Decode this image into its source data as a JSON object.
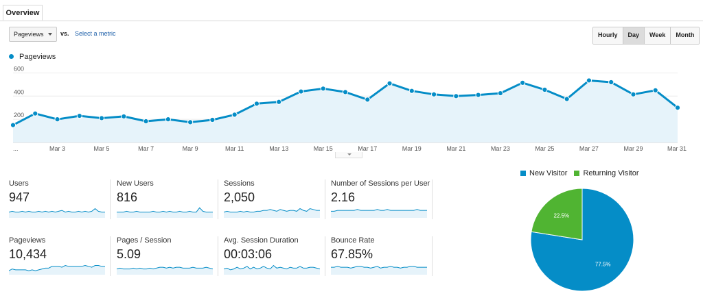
{
  "tabs": [
    {
      "label": "Overview"
    }
  ],
  "controls": {
    "metric_select": "Pageviews",
    "vs_label": "vs.",
    "select_metric_link": "Select a metric",
    "period_buttons": [
      "Hourly",
      "Day",
      "Week",
      "Month"
    ],
    "active_period": "Day"
  },
  "colors": {
    "primary": "#058dc7",
    "secondary": "#50b432",
    "area_fill": "#e6f3fa",
    "grid": "#ececec"
  },
  "chart_data": [
    {
      "type": "line",
      "series": [
        {
          "name": "Pageviews",
          "values": [
            150,
            250,
            200,
            230,
            210,
            225,
            183,
            200,
            175,
            195,
            240,
            335,
            350,
            440,
            465,
            435,
            370,
            510,
            445,
            415,
            400,
            410,
            425,
            515,
            455,
            375,
            535,
            520,
            415,
            450,
            300
          ]
        }
      ],
      "x": [
        "Mar 1",
        "Mar 2",
        "Mar 3",
        "Mar 4",
        "Mar 5",
        "Mar 6",
        "Mar 7",
        "Mar 8",
        "Mar 9",
        "Mar 10",
        "Mar 11",
        "Mar 12",
        "Mar 13",
        "Mar 14",
        "Mar 15",
        "Mar 16",
        "Mar 17",
        "Mar 18",
        "Mar 19",
        "Mar 20",
        "Mar 21",
        "Mar 22",
        "Mar 23",
        "Mar 24",
        "Mar 25",
        "Mar 26",
        "Mar 27",
        "Mar 28",
        "Mar 29",
        "Mar 30",
        "Mar 31"
      ],
      "xtick_labels": [
        "...",
        "Mar 3",
        "Mar 5",
        "Mar 7",
        "Mar 9",
        "Mar 11",
        "Mar 13",
        "Mar 15",
        "Mar 17",
        "Mar 19",
        "Mar 21",
        "Mar 23",
        "Mar 25",
        "Mar 27",
        "Mar 29",
        "Mar 31"
      ],
      "y_ticks": [
        200,
        400,
        600
      ],
      "ylim": [
        0,
        650
      ],
      "grid": true,
      "legend": "top-left"
    },
    {
      "type": "pie",
      "labels": [
        "New Visitor",
        "Returning Visitor"
      ],
      "values": [
        77.5,
        22.5
      ],
      "value_labels": [
        "77.5%",
        "22.5%"
      ],
      "colors": [
        "#058dc7",
        "#50b432"
      ],
      "legend": "top"
    }
  ],
  "metrics": [
    {
      "label": "Users",
      "value": "947",
      "spark": [
        5,
        6,
        5,
        5,
        6,
        5,
        6,
        5,
        5,
        6,
        5,
        6,
        5,
        6,
        5,
        6,
        7,
        5,
        6,
        5,
        5,
        6,
        5,
        6,
        5,
        6,
        9,
        6,
        5,
        5
      ]
    },
    {
      "label": "New Users",
      "value": "816",
      "spark": [
        5,
        5,
        5,
        6,
        5,
        5,
        6,
        5,
        5,
        5,
        5,
        6,
        5,
        5,
        6,
        5,
        6,
        5,
        5,
        6,
        5,
        5,
        6,
        5,
        5,
        10,
        6,
        5,
        5,
        5
      ]
    },
    {
      "label": "Sessions",
      "value": "2,050",
      "spark": [
        5,
        6,
        5,
        5,
        5,
        6,
        5,
        6,
        5,
        5,
        6,
        6,
        7,
        7,
        8,
        7,
        6,
        8,
        7,
        6,
        7,
        7,
        6,
        9,
        7,
        6,
        9,
        8,
        7,
        7
      ]
    },
    {
      "label": "Number of Sessions per User",
      "value": "2.16",
      "spark": [
        6,
        6,
        7,
        7,
        7,
        7,
        7,
        7,
        8,
        7,
        7,
        7,
        7,
        7,
        8,
        7,
        7,
        8,
        7,
        7,
        7,
        7,
        7,
        7,
        7,
        7,
        8,
        7,
        7,
        7
      ]
    },
    {
      "label": "Pageviews",
      "value": "10,434",
      "spark": [
        3,
        5,
        4,
        4,
        4,
        4,
        3,
        4,
        3,
        4,
        5,
        6,
        6,
        8,
        8,
        8,
        7,
        9,
        8,
        8,
        8,
        8,
        8,
        9,
        8,
        7,
        9,
        9,
        8,
        8
      ]
    },
    {
      "label": "Pages / Session",
      "value": "5.09",
      "spark": [
        5,
        6,
        5,
        5,
        5,
        6,
        5,
        6,
        5,
        5,
        6,
        5,
        6,
        7,
        7,
        6,
        7,
        6,
        7,
        7,
        6,
        6,
        6,
        7,
        6,
        6,
        6,
        7,
        6,
        5
      ]
    },
    {
      "label": "Avg. Session Duration",
      "value": "00:03:06",
      "spark": [
        5,
        6,
        4,
        5,
        7,
        5,
        6,
        8,
        5,
        7,
        5,
        6,
        8,
        6,
        5,
        9,
        6,
        7,
        6,
        5,
        7,
        6,
        6,
        8,
        6,
        6,
        7,
        7,
        6,
        5
      ]
    },
    {
      "label": "Bounce Rate",
      "value": "67.85%",
      "spark": [
        7,
        7,
        8,
        7,
        7,
        7,
        6,
        7,
        8,
        8,
        7,
        7,
        6,
        7,
        8,
        6,
        7,
        7,
        8,
        7,
        7,
        6,
        7,
        7,
        8,
        8,
        7,
        7,
        7,
        7
      ]
    }
  ]
}
